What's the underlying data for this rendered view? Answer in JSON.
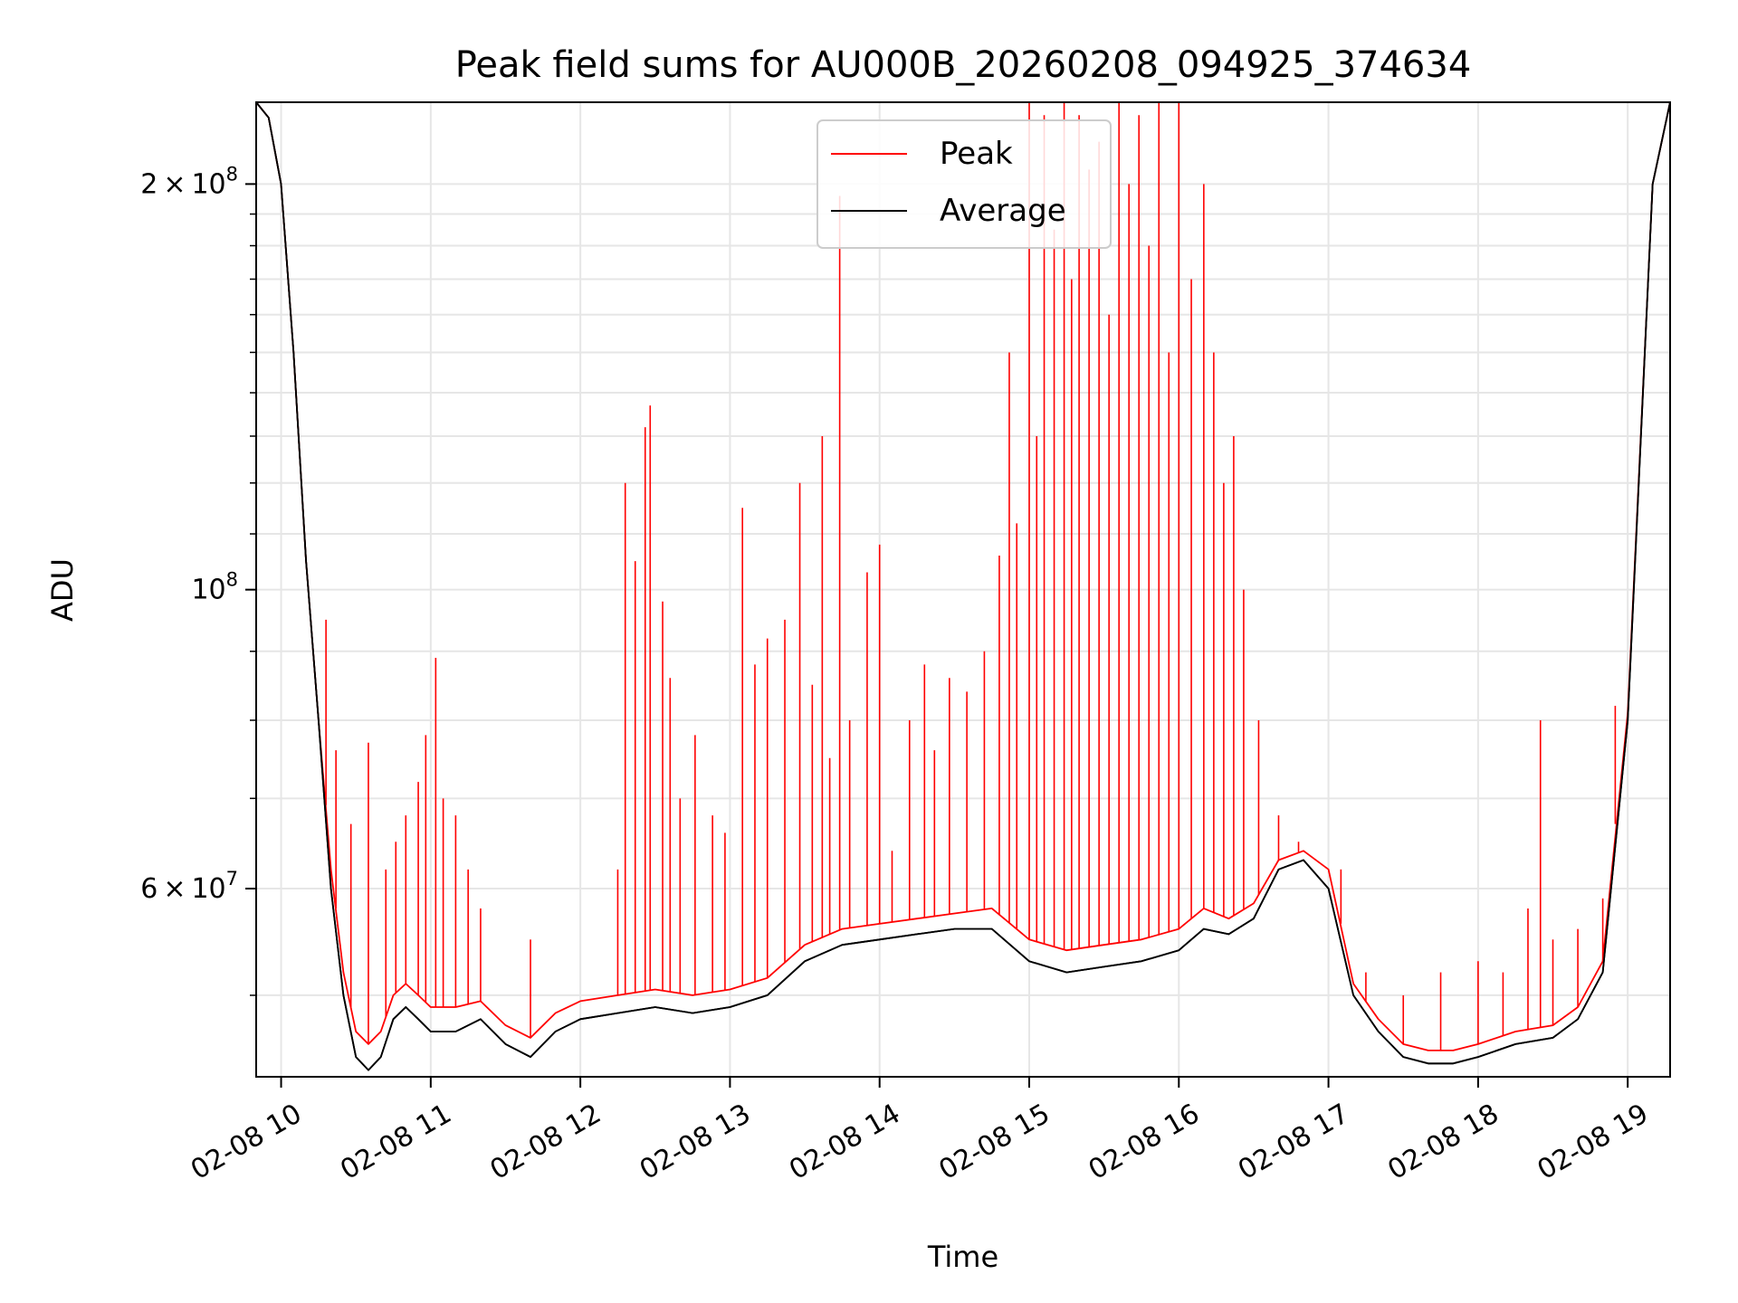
{
  "chart_data": {
    "type": "line",
    "title": "Peak field sums for AU000B_20260208_094925_374634",
    "xlabel": "Time",
    "ylabel": "ADU",
    "yscale": "log",
    "xlim": [
      "2026-02-08 09:50",
      "2026-02-08 19:17"
    ],
    "ylim": [
      43500000,
      230000000
    ],
    "grid": true,
    "legend": "upper center",
    "x_ticks": [
      "02-08 10",
      "02-08 11",
      "02-08 12",
      "02-08 13",
      "02-08 14",
      "02-08 15",
      "02-08 16",
      "02-08 17",
      "02-08 18",
      "02-08 19"
    ],
    "y_ticks": [
      {
        "value": 200000000,
        "mant": "2",
        "exp": "8"
      },
      {
        "value": 100000000,
        "mant": "",
        "exp": "8"
      },
      {
        "value": 60000000,
        "mant": "6",
        "exp": "7"
      }
    ],
    "x_times": [
      "09:50",
      "09:55",
      "10:00",
      "10:05",
      "10:10",
      "10:15",
      "10:20",
      "10:25",
      "10:30",
      "10:35",
      "10:40",
      "10:45",
      "10:50",
      "10:55",
      "11:00",
      "11:10",
      "11:20",
      "11:30",
      "11:40",
      "11:50",
      "12:00",
      "12:15",
      "12:30",
      "12:45",
      "13:00",
      "13:15",
      "13:30",
      "13:45",
      "14:00",
      "14:15",
      "14:30",
      "14:45",
      "15:00",
      "15:15",
      "15:30",
      "15:45",
      "16:00",
      "16:10",
      "16:20",
      "16:30",
      "16:40",
      "16:50",
      "17:00",
      "17:10",
      "17:20",
      "17:30",
      "17:40",
      "17:50",
      "18:00",
      "18:15",
      "18:30",
      "18:40",
      "18:50",
      "19:00",
      "19:10",
      "19:17"
    ],
    "series": [
      {
        "name": "Average",
        "color": "#000000",
        "y_mln": [
          230,
          224,
          200,
          150,
          105,
          80,
          60,
          50,
          45,
          44,
          45,
          48,
          49,
          48,
          47,
          47,
          48,
          46,
          45,
          47,
          48,
          48.5,
          49,
          48.5,
          49,
          50,
          53,
          54.5,
          55,
          55.5,
          56,
          56,
          53,
          52,
          52.5,
          53,
          54,
          56,
          55.5,
          57,
          62,
          63,
          60,
          50,
          47,
          45,
          44.5,
          44.5,
          45,
          46,
          46.5,
          48,
          52,
          80,
          200,
          230
        ]
      },
      {
        "name": "Peak",
        "color": "#ff0000",
        "y_mln": [
          230,
          224,
          200,
          150,
          105,
          80,
          62,
          52,
          47,
          46,
          47,
          50,
          51,
          50,
          49,
          49,
          49.5,
          47.5,
          46.5,
          48.5,
          49.5,
          50,
          50.5,
          50,
          50.5,
          51.5,
          54.5,
          56,
          56.5,
          57,
          57.5,
          58,
          55,
          54,
          54.5,
          55,
          56,
          58,
          57,
          58.5,
          63,
          64,
          62,
          51,
          48,
          46,
          45.5,
          45.5,
          46,
          47,
          47.5,
          49,
          53,
          81,
          200,
          230
        ]
      }
    ],
    "peak_spikes": [
      {
        "t": "10:18",
        "y_mln": 95
      },
      {
        "t": "10:22",
        "y_mln": 76
      },
      {
        "t": "10:28",
        "y_mln": 67
      },
      {
        "t": "10:35",
        "y_mln": 77
      },
      {
        "t": "10:42",
        "y_mln": 62
      },
      {
        "t": "10:46",
        "y_mln": 65
      },
      {
        "t": "10:50",
        "y_mln": 68
      },
      {
        "t": "10:55",
        "y_mln": 72
      },
      {
        "t": "10:58",
        "y_mln": 78
      },
      {
        "t": "11:02",
        "y_mln": 89
      },
      {
        "t": "11:05",
        "y_mln": 70
      },
      {
        "t": "11:10",
        "y_mln": 68
      },
      {
        "t": "11:15",
        "y_mln": 62
      },
      {
        "t": "11:20",
        "y_mln": 58
      },
      {
        "t": "11:40",
        "y_mln": 55
      },
      {
        "t": "12:15",
        "y_mln": 62
      },
      {
        "t": "12:18",
        "y_mln": 120
      },
      {
        "t": "12:22",
        "y_mln": 105
      },
      {
        "t": "12:26",
        "y_mln": 132
      },
      {
        "t": "12:28",
        "y_mln": 137
      },
      {
        "t": "12:33",
        "y_mln": 98
      },
      {
        "t": "12:36",
        "y_mln": 86
      },
      {
        "t": "12:40",
        "y_mln": 70
      },
      {
        "t": "12:46",
        "y_mln": 78
      },
      {
        "t": "12:53",
        "y_mln": 68
      },
      {
        "t": "12:58",
        "y_mln": 66
      },
      {
        "t": "13:05",
        "y_mln": 115
      },
      {
        "t": "13:10",
        "y_mln": 88
      },
      {
        "t": "13:15",
        "y_mln": 92
      },
      {
        "t": "13:22",
        "y_mln": 95
      },
      {
        "t": "13:28",
        "y_mln": 120
      },
      {
        "t": "13:33",
        "y_mln": 85
      },
      {
        "t": "13:37",
        "y_mln": 130
      },
      {
        "t": "13:40",
        "y_mln": 75
      },
      {
        "t": "13:44",
        "y_mln": 196
      },
      {
        "t": "13:48",
        "y_mln": 80
      },
      {
        "t": "13:55",
        "y_mln": 103
      },
      {
        "t": "14:00",
        "y_mln": 108
      },
      {
        "t": "14:05",
        "y_mln": 64
      },
      {
        "t": "14:12",
        "y_mln": 80
      },
      {
        "t": "14:18",
        "y_mln": 88
      },
      {
        "t": "14:22",
        "y_mln": 76
      },
      {
        "t": "14:28",
        "y_mln": 86
      },
      {
        "t": "14:35",
        "y_mln": 84
      },
      {
        "t": "14:42",
        "y_mln": 90
      },
      {
        "t": "14:48",
        "y_mln": 106
      },
      {
        "t": "14:52",
        "y_mln": 150
      },
      {
        "t": "14:55",
        "y_mln": 112
      },
      {
        "t": "15:00",
        "y_mln": 230
      },
      {
        "t": "15:03",
        "y_mln": 130
      },
      {
        "t": "15:06",
        "y_mln": 225
      },
      {
        "t": "15:10",
        "y_mln": 185
      },
      {
        "t": "15:14",
        "y_mln": 230
      },
      {
        "t": "15:17",
        "y_mln": 170
      },
      {
        "t": "15:20",
        "y_mln": 225
      },
      {
        "t": "15:24",
        "y_mln": 205
      },
      {
        "t": "15:28",
        "y_mln": 215
      },
      {
        "t": "15:32",
        "y_mln": 160
      },
      {
        "t": "15:36",
        "y_mln": 230
      },
      {
        "t": "15:40",
        "y_mln": 200
      },
      {
        "t": "15:44",
        "y_mln": 225
      },
      {
        "t": "15:48",
        "y_mln": 180
      },
      {
        "t": "15:52",
        "y_mln": 230
      },
      {
        "t": "15:56",
        "y_mln": 150
      },
      {
        "t": "16:00",
        "y_mln": 230
      },
      {
        "t": "16:05",
        "y_mln": 170
      },
      {
        "t": "16:10",
        "y_mln": 200
      },
      {
        "t": "16:14",
        "y_mln": 150
      },
      {
        "t": "16:18",
        "y_mln": 120
      },
      {
        "t": "16:22",
        "y_mln": 130
      },
      {
        "t": "16:26",
        "y_mln": 100
      },
      {
        "t": "16:32",
        "y_mln": 80
      },
      {
        "t": "16:40",
        "y_mln": 68
      },
      {
        "t": "16:48",
        "y_mln": 65
      },
      {
        "t": "17:05",
        "y_mln": 62
      },
      {
        "t": "17:15",
        "y_mln": 52
      },
      {
        "t": "17:30",
        "y_mln": 50
      },
      {
        "t": "17:45",
        "y_mln": 52
      },
      {
        "t": "18:00",
        "y_mln": 53
      },
      {
        "t": "18:10",
        "y_mln": 52
      },
      {
        "t": "18:20",
        "y_mln": 58
      },
      {
        "t": "18:25",
        "y_mln": 80
      },
      {
        "t": "18:30",
        "y_mln": 55
      },
      {
        "t": "18:40",
        "y_mln": 56
      },
      {
        "t": "18:50",
        "y_mln": 59
      },
      {
        "t": "18:55",
        "y_mln": 82
      }
    ]
  }
}
